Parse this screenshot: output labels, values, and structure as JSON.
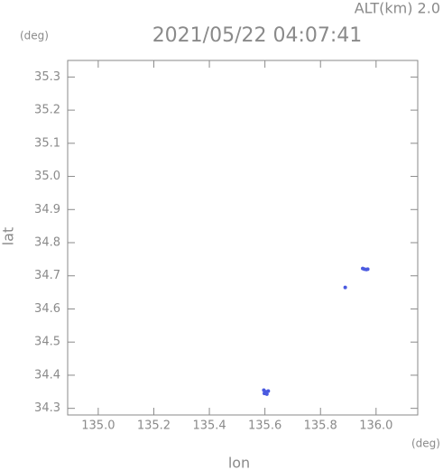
{
  "chart_data": {
    "type": "scatter",
    "title": "2021/05/22 04:07:41",
    "subtitle": "ALT(km) 2.0",
    "x_label": "lon",
    "y_label": "lat",
    "x_unit": "(deg)",
    "y_unit": "(deg)",
    "x": [
      135.598,
      135.603,
      135.607,
      135.612,
      135.596,
      135.889,
      135.952,
      135.958,
      135.965,
      135.97
    ],
    "values": [
      34.345,
      34.35,
      34.343,
      34.352,
      34.355,
      34.665,
      34.722,
      34.72,
      34.719,
      34.72
    ],
    "color": "#4a5ae0",
    "xlim": [
      134.89,
      136.15
    ],
    "ylim": [
      34.28,
      35.35
    ],
    "xticks": [
      {
        "value": 135,
        "label": "135.0"
      },
      135.2,
      135.4,
      135.6,
      135.8,
      {
        "value": 136,
        "label": "136.0"
      }
    ],
    "yticks": [
      34.3,
      34.4,
      34.5,
      34.6,
      34.7,
      34.8,
      34.9,
      {
        "value": 35,
        "label": "35.0"
      },
      35.1,
      35.2,
      35.3
    ],
    "grid": false
  }
}
